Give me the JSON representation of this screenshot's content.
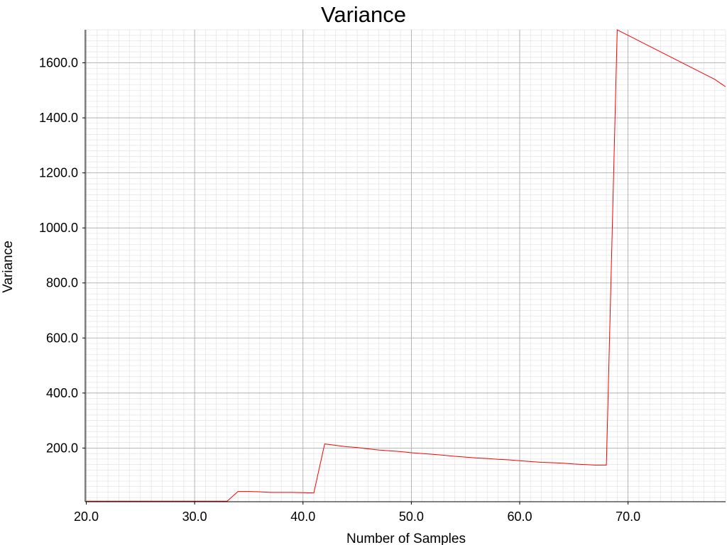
{
  "chart_data": {
    "type": "line",
    "title": "Variance",
    "xlabel": "Number of Samples",
    "ylabel": "Variance",
    "xlim": [
      19.9,
      79
    ],
    "ylim": [
      5,
      1720
    ],
    "xticks": [
      20,
      30,
      40,
      50,
      60,
      70
    ],
    "xtick_labels": [
      "20.0",
      "30.0",
      "40.0",
      "50.0",
      "60.0",
      "70.0"
    ],
    "yticks": [
      200,
      400,
      600,
      800,
      1000,
      1200,
      1400,
      1600
    ],
    "ytick_labels": [
      "200.0",
      "400.0",
      "600.0",
      "800.0",
      "1000.0",
      "1200.0",
      "1400.0",
      "1600.0"
    ],
    "grid": true,
    "colors": {
      "series": "#ff0000",
      "major_grid": "#a6a6a6",
      "minor_grid": "#e3e3e3",
      "axis": "#000000"
    },
    "series": [
      {
        "x": [
          20,
          21,
          22,
          23,
          24,
          25,
          26,
          27,
          28,
          29,
          30,
          31,
          32,
          33,
          34,
          35,
          36,
          37,
          38,
          39,
          40,
          41,
          42,
          43,
          44,
          45,
          46,
          47,
          48,
          49,
          50,
          51,
          52,
          53,
          54,
          55,
          56,
          57,
          58,
          59,
          60,
          61,
          62,
          63,
          64,
          65,
          66,
          67,
          68,
          69,
          70,
          71,
          72,
          73,
          74,
          75,
          76,
          77,
          78,
          79
        ],
        "values": [
          7,
          7,
          7,
          7,
          7,
          7,
          7,
          7,
          7,
          7,
          7,
          7,
          7,
          7,
          42,
          42,
          41,
          39,
          39,
          39,
          38,
          37,
          215,
          210,
          205,
          202,
          197,
          193,
          190,
          187,
          183,
          180,
          177,
          174,
          170,
          167,
          164,
          162,
          159,
          157,
          154,
          151,
          148,
          147,
          145,
          142,
          140,
          138,
          138,
          1720,
          1700,
          1680,
          1660,
          1640,
          1620,
          1600,
          1580,
          1560,
          1540,
          1513
        ]
      }
    ]
  }
}
